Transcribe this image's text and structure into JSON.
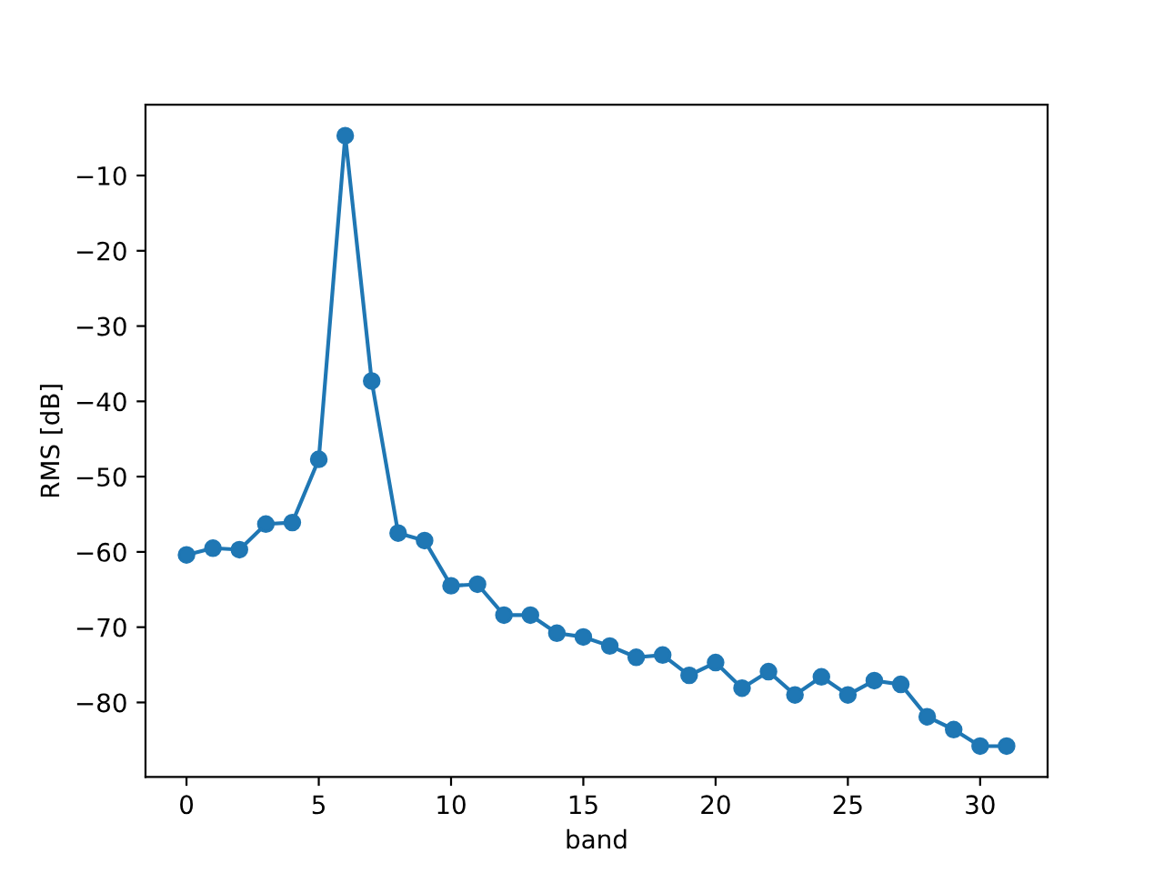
{
  "chart_data": {
    "type": "line",
    "xlabel": "band",
    "ylabel": "RMS [dB]",
    "x": [
      0,
      1,
      2,
      3,
      4,
      5,
      6,
      7,
      8,
      9,
      10,
      11,
      12,
      13,
      14,
      15,
      16,
      17,
      18,
      19,
      20,
      21,
      22,
      23,
      24,
      25,
      26,
      27,
      28,
      29,
      30,
      31
    ],
    "series": [
      {
        "color": "#1f77b4",
        "values": [
          -60.4,
          -59.5,
          -59.7,
          -56.3,
          -56.1,
          -47.7,
          -4.7,
          -37.3,
          -57.5,
          -58.5,
          -64.5,
          -64.3,
          -68.4,
          -68.4,
          -70.8,
          -71.3,
          -72.5,
          -74.0,
          -73.7,
          -76.4,
          -74.7,
          -78.1,
          -75.9,
          -79.0,
          -76.6,
          -79.0,
          -77.1,
          -77.6,
          -81.9,
          -83.6,
          -85.8,
          -85.8
        ]
      }
    ],
    "marker": "circle",
    "line_style": "solid",
    "grid": false,
    "legend": false,
    "xlim": [
      -1.55,
      32.55
    ],
    "ylim": [
      -89.9,
      -0.6
    ],
    "xticks": [
      0,
      5,
      10,
      15,
      20,
      25,
      30
    ],
    "yticks": [
      {
        "value": -80,
        "label": "−80"
      },
      {
        "value": -70,
        "label": "−70"
      },
      {
        "value": -60,
        "label": "−60"
      },
      {
        "value": -50,
        "label": "−50"
      },
      {
        "value": -40,
        "label": "−40"
      },
      {
        "value": -30,
        "label": "−30"
      },
      {
        "value": -20,
        "label": "−20"
      },
      {
        "value": -10,
        "label": "−10"
      }
    ]
  }
}
